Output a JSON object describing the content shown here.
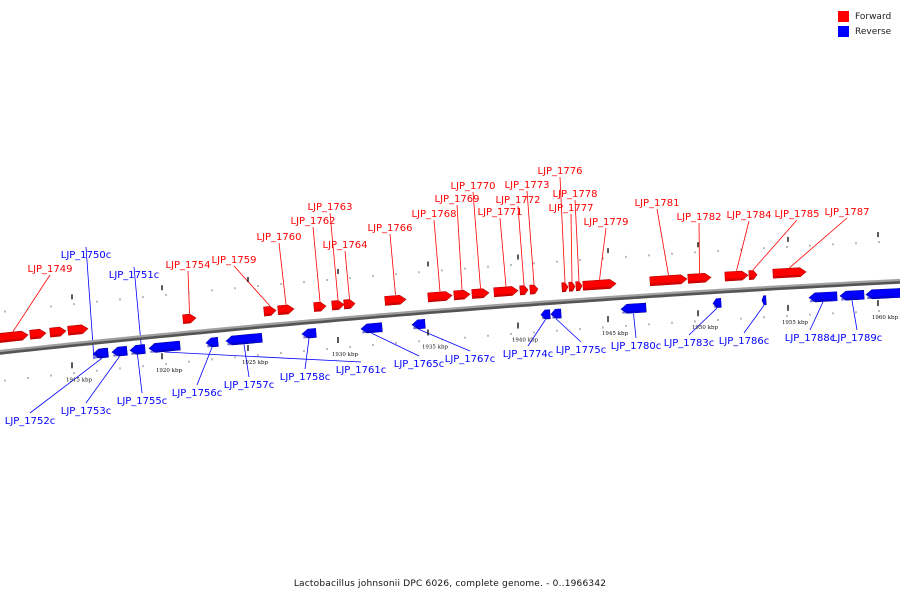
{
  "caption": "Lactobacillus johnsonii DPC 6026, complete genome. - 0..1966342",
  "legend": [
    {
      "label": "Forward",
      "color": "#ff0000"
    },
    {
      "label": "Reverse",
      "color": "#0000ff"
    }
  ],
  "colors": {
    "forward": "#ff0000",
    "reverse": "#0000ff",
    "backbone": "#888888"
  },
  "ticks": [
    {
      "kbp": 1915,
      "label": "1915 kbp"
    },
    {
      "kbp": 1920,
      "label": "1920 kbp"
    },
    {
      "kbp": 1925,
      "label": "1925 kbp"
    },
    {
      "kbp": 1930,
      "label": "1930 kbp"
    },
    {
      "kbp": 1935,
      "label": "1935 kbp"
    },
    {
      "kbp": 1940,
      "label": "1940 kbp"
    },
    {
      "kbp": 1945,
      "label": "1945 kbp"
    },
    {
      "kbp": 1950,
      "label": "1950 kbp"
    },
    {
      "kbp": 1955,
      "label": "1955 kbp"
    },
    {
      "kbp": 1960,
      "label": "1960 kbp"
    }
  ],
  "genes": [
    {
      "label": "LJP_1749",
      "strand": "forward"
    },
    {
      "label": "LJP_1750c",
      "strand": "reverse"
    },
    {
      "label": "LJP_1751c",
      "strand": "reverse"
    },
    {
      "label": "LJP_1752c",
      "strand": "reverse"
    },
    {
      "label": "LJP_1753c",
      "strand": "reverse"
    },
    {
      "label": "LJP_1754",
      "strand": "forward"
    },
    {
      "label": "LJP_1755c",
      "strand": "reverse"
    },
    {
      "label": "LJP_1756c",
      "strand": "reverse"
    },
    {
      "label": "LJP_1757c",
      "strand": "reverse"
    },
    {
      "label": "LJP_1758c",
      "strand": "reverse"
    },
    {
      "label": "LJP_1759",
      "strand": "forward"
    },
    {
      "label": "LJP_1760",
      "strand": "forward"
    },
    {
      "label": "LJP_1761c",
      "strand": "reverse"
    },
    {
      "label": "LJP_1762",
      "strand": "forward"
    },
    {
      "label": "LJP_1763",
      "strand": "forward"
    },
    {
      "label": "LJP_1764",
      "strand": "forward"
    },
    {
      "label": "LJP_1765c",
      "strand": "reverse"
    },
    {
      "label": "LJP_1766",
      "strand": "forward"
    },
    {
      "label": "LJP_1767c",
      "strand": "reverse"
    },
    {
      "label": "LJP_1768",
      "strand": "forward"
    },
    {
      "label": "LJP_1769",
      "strand": "forward"
    },
    {
      "label": "LJP_1770",
      "strand": "forward"
    },
    {
      "label": "LJP_1771",
      "strand": "forward"
    },
    {
      "label": "LJP_1772",
      "strand": "forward"
    },
    {
      "label": "LJP_1773",
      "strand": "forward"
    },
    {
      "label": "LJP_1774c",
      "strand": "reverse"
    },
    {
      "label": "LJP_1775c",
      "strand": "reverse"
    },
    {
      "label": "LJP_1776",
      "strand": "forward"
    },
    {
      "label": "LJP_1777",
      "strand": "forward"
    },
    {
      "label": "LJP_1778",
      "strand": "forward"
    },
    {
      "label": "LJP_1779",
      "strand": "forward"
    },
    {
      "label": "LJP_1780c",
      "strand": "reverse"
    },
    {
      "label": "LJP_1781",
      "strand": "forward"
    },
    {
      "label": "LJP_1782",
      "strand": "forward"
    },
    {
      "label": "LJP_1783c",
      "strand": "reverse"
    },
    {
      "label": "LJP_1784",
      "strand": "forward"
    },
    {
      "label": "LJP_1785",
      "strand": "forward"
    },
    {
      "label": "LJP_1786c",
      "strand": "reverse"
    },
    {
      "label": "LJP_1787",
      "strand": "forward"
    },
    {
      "label": "LJP_1788c",
      "strand": "reverse"
    },
    {
      "label": "LJP_1789c",
      "strand": "reverse"
    }
  ]
}
